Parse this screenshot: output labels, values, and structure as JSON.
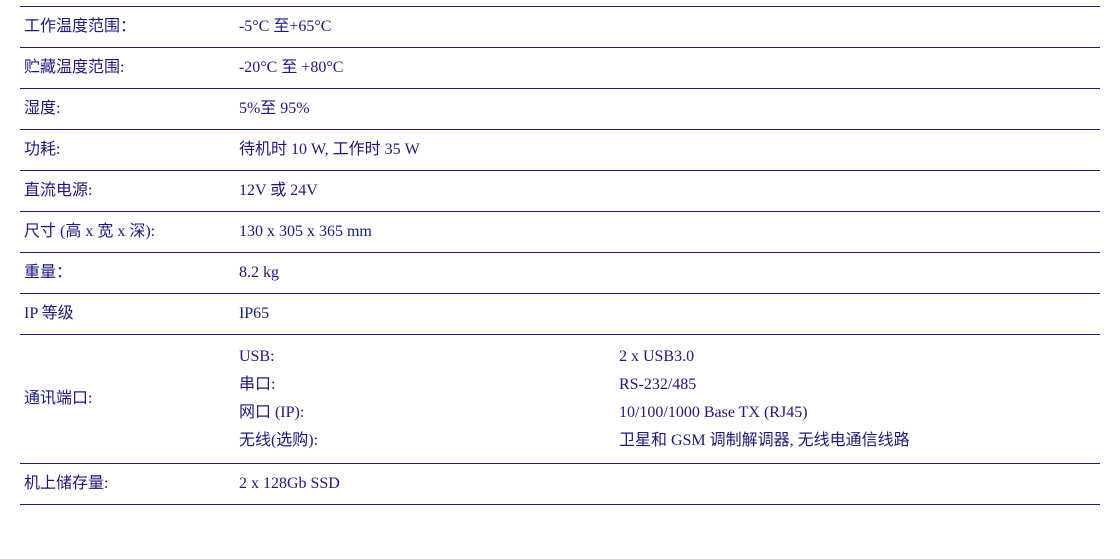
{
  "table": {
    "text_color": "#1a1a7a",
    "border_color": "#1a1a7a",
    "background_color": "#ffffff",
    "font_family": "Times New Roman / SimSun",
    "font_size_pt": 12,
    "columns": [
      "label",
      "value"
    ],
    "rows": [
      {
        "label": "工作温度范围：",
        "value": "-5°C 至+65°C"
      },
      {
        "label": "贮藏温度范围:",
        "value": "-20°C 至 +80°C"
      },
      {
        "label": "湿度:",
        "value": "5%至 95%"
      },
      {
        "label": "功耗:",
        "value": "待机时 10 W, 工作时 35 W"
      },
      {
        "label": "直流电源:",
        "value": "12V 或 24V"
      },
      {
        "label": "尺寸 (高 x 宽 x 深):",
        "value": "130 x 305 x 365 mm"
      },
      {
        "label": "重量：",
        "value": "8.2 kg"
      },
      {
        "label": "IP 等级",
        "value": "IP65"
      }
    ],
    "comm_row": {
      "label": "通讯端口:",
      "items": [
        {
          "key": "USB:",
          "val": "2 x USB3.0"
        },
        {
          "key": "串口:",
          "val": "RS-232/485"
        },
        {
          "key": "网口 (IP):",
          "val": "10/100/1000 Base TX (RJ45)"
        },
        {
          "key": "无线(选购):",
          "val": "卫星和 GSM 调制解调器, 无线电通信线路"
        }
      ]
    },
    "storage_row": {
      "label": "机上储存量:",
      "value": "2 x 128Gb SSD"
    }
  }
}
